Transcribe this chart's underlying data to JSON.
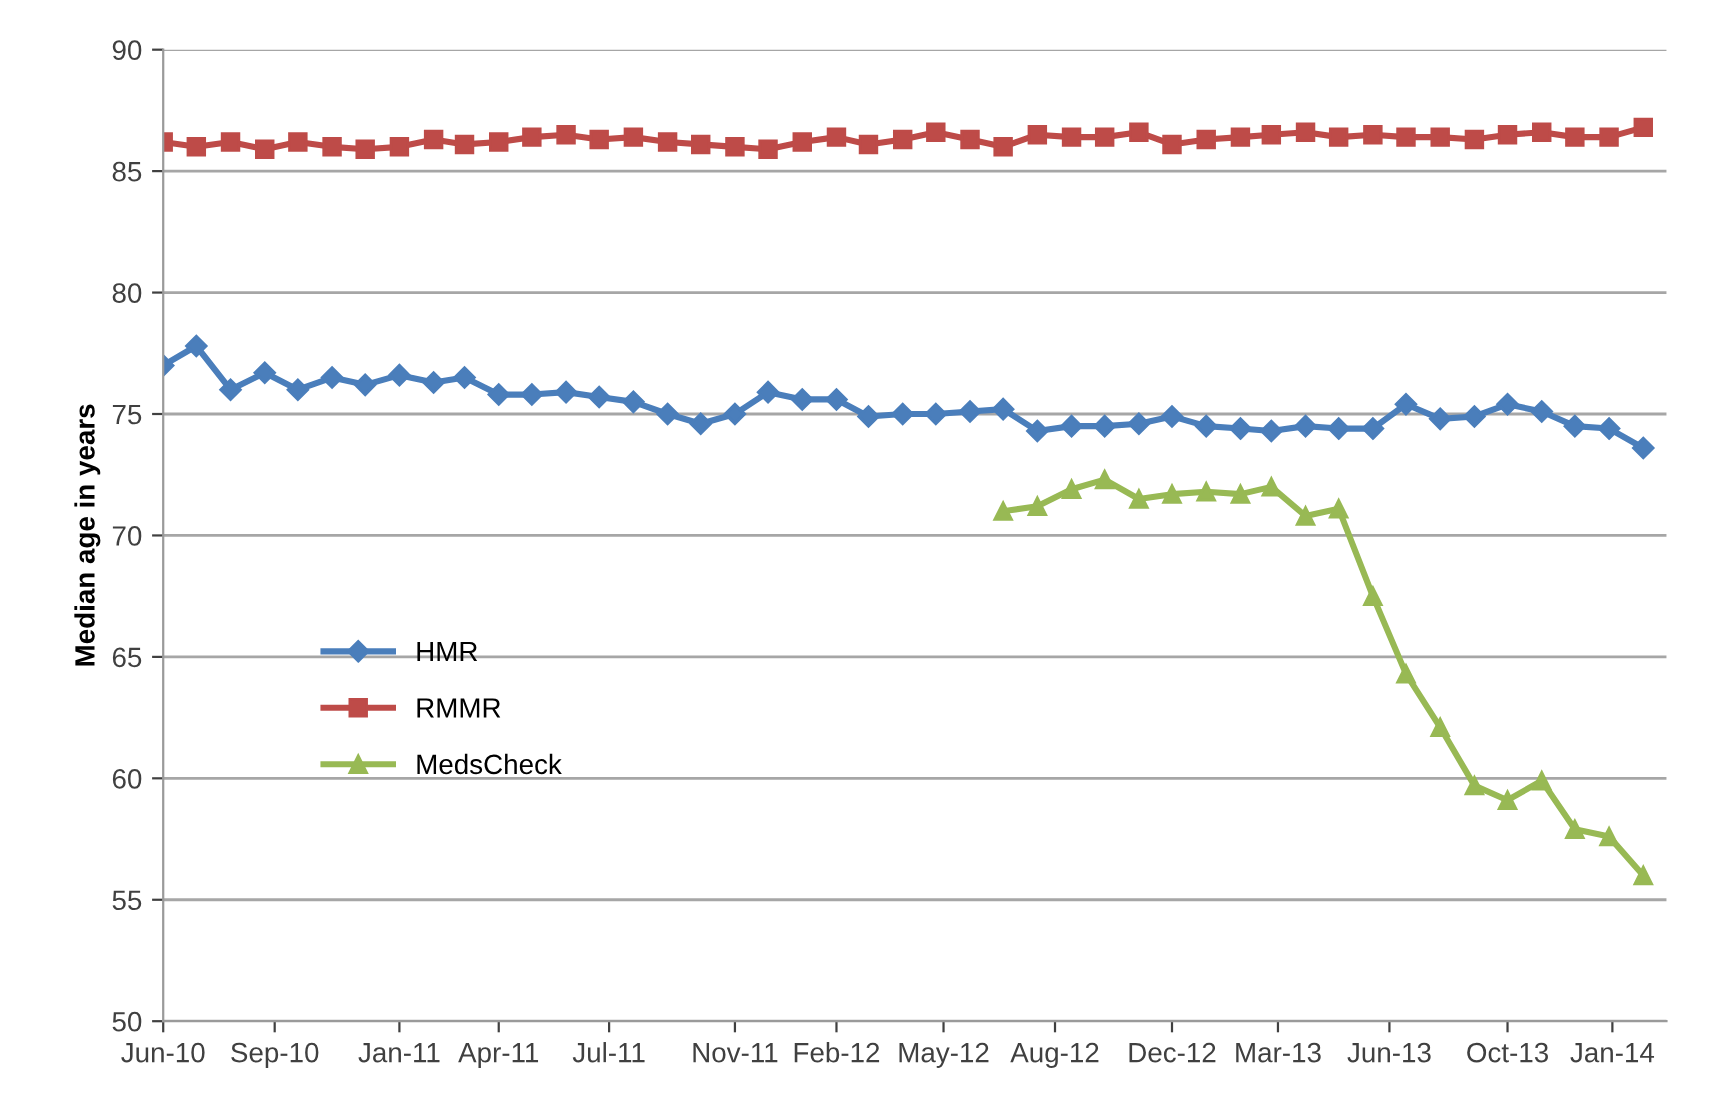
{
  "chart_data": {
    "type": "line",
    "ylabel": "Median age in years",
    "x": [
      "2010-06",
      "2010-07",
      "2010-08",
      "2010-09",
      "2010-10",
      "2010-11",
      "2010-12",
      "2011-01",
      "2011-02",
      "2011-03",
      "2011-04",
      "2011-05",
      "2011-06",
      "2011-07",
      "2011-08",
      "2011-09",
      "2011-10",
      "2011-11",
      "2011-12",
      "2012-01",
      "2012-02",
      "2012-03",
      "2012-04",
      "2012-05",
      "2012-06",
      "2012-07",
      "2012-08",
      "2012-09",
      "2012-10",
      "2012-11",
      "2012-12",
      "2013-01",
      "2013-02",
      "2013-03",
      "2013-04",
      "2013-05",
      "2013-06",
      "2013-07",
      "2013-08",
      "2013-09",
      "2013-10",
      "2013-11",
      "2013-12",
      "2014-01",
      "2014-02"
    ],
    "series": [
      {
        "name": "HMR",
        "color": "#4a7ebb",
        "marker": "diamond",
        "values": [
          77.0,
          77.8,
          76.0,
          76.7,
          76.0,
          76.5,
          76.2,
          76.6,
          76.3,
          76.5,
          75.8,
          75.8,
          75.9,
          75.7,
          75.5,
          75.0,
          74.6,
          75.0,
          75.9,
          75.6,
          75.6,
          74.9,
          75.0,
          75.0,
          75.1,
          75.2,
          74.3,
          74.5,
          74.5,
          74.6,
          74.9,
          74.5,
          74.4,
          74.3,
          74.5,
          74.4,
          74.4,
          75.4,
          74.8,
          74.9,
          75.4,
          75.1,
          74.5,
          74.4,
          73.6
        ]
      },
      {
        "name": "RMMR",
        "color": "#be4b48",
        "marker": "square",
        "values": [
          86.2,
          86.0,
          86.2,
          85.9,
          86.2,
          86.0,
          85.9,
          86.0,
          86.3,
          86.1,
          86.2,
          86.4,
          86.5,
          86.3,
          86.4,
          86.2,
          86.1,
          86.0,
          85.9,
          86.2,
          86.4,
          86.1,
          86.3,
          86.6,
          86.3,
          86.0,
          86.5,
          86.4,
          86.4,
          86.6,
          86.1,
          86.3,
          86.4,
          86.5,
          86.6,
          86.4,
          86.5,
          86.4,
          86.4,
          86.3,
          86.5,
          86.6,
          86.4,
          86.4,
          86.8
        ]
      },
      {
        "name": "MedsCheck",
        "color": "#98b954",
        "marker": "triangle",
        "values": [
          null,
          null,
          null,
          null,
          null,
          null,
          null,
          null,
          null,
          null,
          null,
          null,
          null,
          null,
          null,
          null,
          null,
          null,
          null,
          null,
          null,
          null,
          null,
          null,
          null,
          71.0,
          71.2,
          71.9,
          72.3,
          71.5,
          71.7,
          71.8,
          71.7,
          72.0,
          70.8,
          71.1,
          67.5,
          64.3,
          62.1,
          59.7,
          59.1,
          59.9,
          57.9,
          57.6,
          56.0
        ]
      }
    ],
    "xlim": [
      "2010-06-01",
      "2014-02-22"
    ],
    "xticks": [
      {
        "value": "2010-06-01",
        "label": "Jun-10"
      },
      {
        "value": "2010-09-10",
        "label": "Sep-10"
      },
      {
        "value": "2011-01-01",
        "label": "Jan-11"
      },
      {
        "value": "2011-04-01",
        "label": "Apr-11"
      },
      {
        "value": "2011-07-10",
        "label": "Jul-11"
      },
      {
        "value": "2011-11-01",
        "label": "Nov-11"
      },
      {
        "value": "2012-02-01",
        "label": "Feb-12"
      },
      {
        "value": "2012-05-08",
        "label": "May-12"
      },
      {
        "value": "2012-08-17",
        "label": "Aug-12"
      },
      {
        "value": "2012-12-01",
        "label": "Dec-12"
      },
      {
        "value": "2013-03-07",
        "label": "Mar-13"
      },
      {
        "value": "2013-06-16",
        "label": "Jun-13"
      },
      {
        "value": "2013-10-01",
        "label": "Oct-13"
      },
      {
        "value": "2014-01-04",
        "label": "Jan-14"
      }
    ],
    "ylim": [
      50,
      90
    ],
    "yticks": [
      50,
      55,
      60,
      65,
      70,
      75,
      80,
      85,
      90
    ],
    "grid": "y",
    "legend": "left",
    "line_style": "solid"
  }
}
